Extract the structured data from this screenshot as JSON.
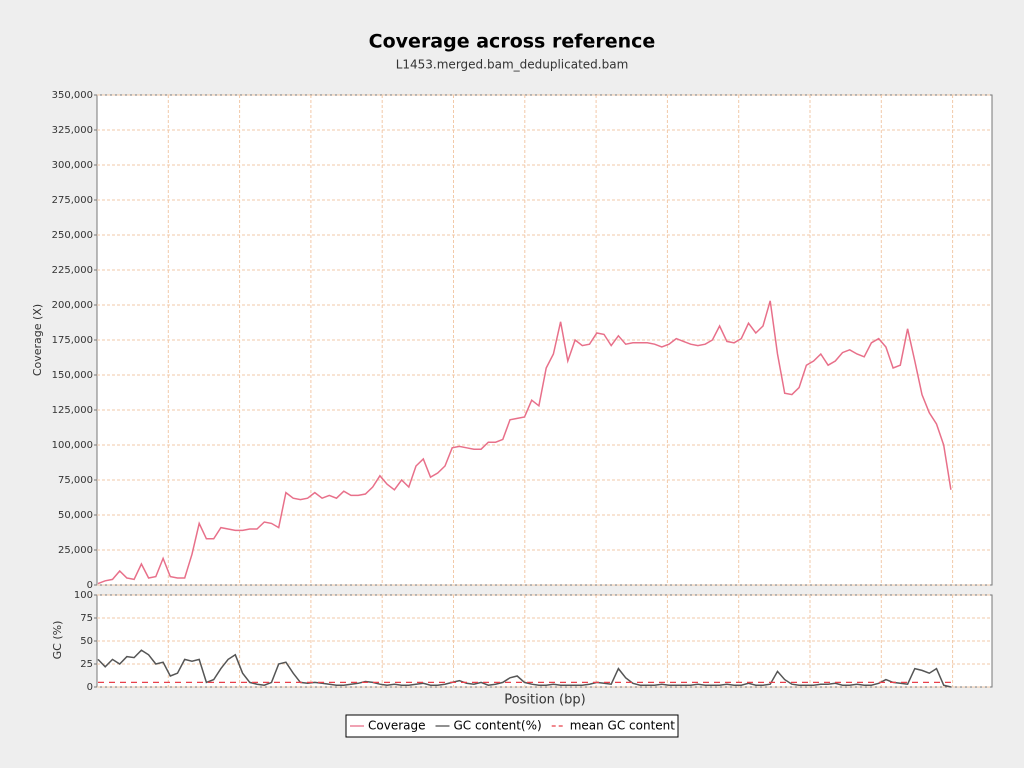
{
  "chart_data": [
    {
      "type": "line",
      "title": "Coverage across reference",
      "subtitle": "L1453.merged.bam_deduplicated.bam",
      "y_label": "Coverage (X)",
      "ylim": [
        0,
        350000
      ],
      "yticks": [
        0,
        {
          "value": 25000,
          "label": "25,000"
        },
        {
          "value": 50000,
          "label": "50,000"
        },
        {
          "value": 75000,
          "label": "75,000"
        },
        {
          "value": 100000,
          "label": "100,000"
        },
        {
          "value": 125000,
          "label": "125,000"
        },
        {
          "value": 150000,
          "label": "150,000"
        },
        {
          "value": 175000,
          "label": "175,000"
        },
        {
          "value": 200000,
          "label": "200,000"
        },
        {
          "value": 225000,
          "label": "225,000"
        },
        {
          "value": 250000,
          "label": "250,000"
        },
        {
          "value": 275000,
          "label": "275,000"
        },
        {
          "value": 300000,
          "label": "300,000"
        },
        {
          "value": 325000,
          "label": "325,000"
        },
        {
          "value": 350000,
          "label": "350,000"
        }
      ],
      "grid": true,
      "series": [
        {
          "name": "Coverage",
          "color": "#e8708a",
          "values": [
            1000,
            3000,
            4000,
            10000,
            5000,
            4000,
            15000,
            5000,
            6000,
            19000,
            6000,
            5000,
            5000,
            22000,
            44000,
            33000,
            33000,
            41000,
            40000,
            39000,
            39000,
            40000,
            40000,
            45000,
            44000,
            41000,
            66000,
            62000,
            61000,
            62000,
            66000,
            62000,
            64000,
            62000,
            67000,
            64000,
            64000,
            65000,
            70000,
            78000,
            72000,
            68000,
            75000,
            70000,
            85000,
            90000,
            77000,
            80000,
            85000,
            98000,
            99000,
            98000,
            97000,
            97000,
            102000,
            102000,
            104000,
            118000,
            119000,
            120000,
            132000,
            128000,
            155000,
            165000,
            188000,
            160000,
            175000,
            171000,
            172000,
            180000,
            179000,
            171000,
            178000,
            172000,
            173000,
            173000,
            173000,
            172000,
            170000,
            172000,
            176000,
            174000,
            172000,
            171000,
            172000,
            175000,
            185000,
            174000,
            173000,
            176000,
            187000,
            180000,
            185000,
            203000,
            165000,
            137000,
            136000,
            141000,
            157000,
            160000,
            165000,
            157000,
            160000,
            166000,
            168000,
            165000,
            163000,
            173000,
            176000,
            170000,
            155000,
            157000,
            183000,
            160000,
            136000,
            123000,
            115000,
            100000,
            68000
          ]
        }
      ]
    },
    {
      "type": "line",
      "y_label": "GC (%)",
      "x_label": "Position (bp)",
      "ylim": [
        0,
        100
      ],
      "yticks": [
        0,
        25,
        50,
        75,
        100
      ],
      "grid": true,
      "series": [
        {
          "name": "GC content(%)",
          "color": "#555555",
          "values": [
            30,
            22,
            30,
            25,
            33,
            32,
            40,
            35,
            25,
            27,
            12,
            15,
            30,
            28,
            30,
            5,
            8,
            20,
            30,
            35,
            15,
            5,
            3,
            2,
            5,
            25,
            27,
            15,
            5,
            4,
            5,
            4,
            3,
            2,
            2,
            3,
            4,
            6,
            5,
            3,
            2,
            3,
            2,
            2,
            3,
            4,
            2,
            2,
            3,
            5,
            7,
            4,
            3,
            5,
            2,
            3,
            5,
            10,
            12,
            5,
            3,
            2,
            2,
            3,
            2,
            2,
            2,
            2,
            3,
            5,
            4,
            3,
            20,
            10,
            4,
            2,
            2,
            2,
            3,
            2,
            2,
            2,
            2,
            3,
            2,
            2,
            2,
            3,
            2,
            2,
            4,
            2,
            2,
            3,
            17,
            8,
            3,
            2,
            2,
            2,
            3,
            3,
            4,
            2,
            2,
            3,
            2,
            2,
            4,
            8,
            5,
            4,
            3,
            20,
            18,
            15,
            20,
            2,
            0
          ]
        }
      ],
      "mean_gc": {
        "name": "mean GC content",
        "value": 5,
        "color": "#e8404a"
      }
    }
  ]
}
